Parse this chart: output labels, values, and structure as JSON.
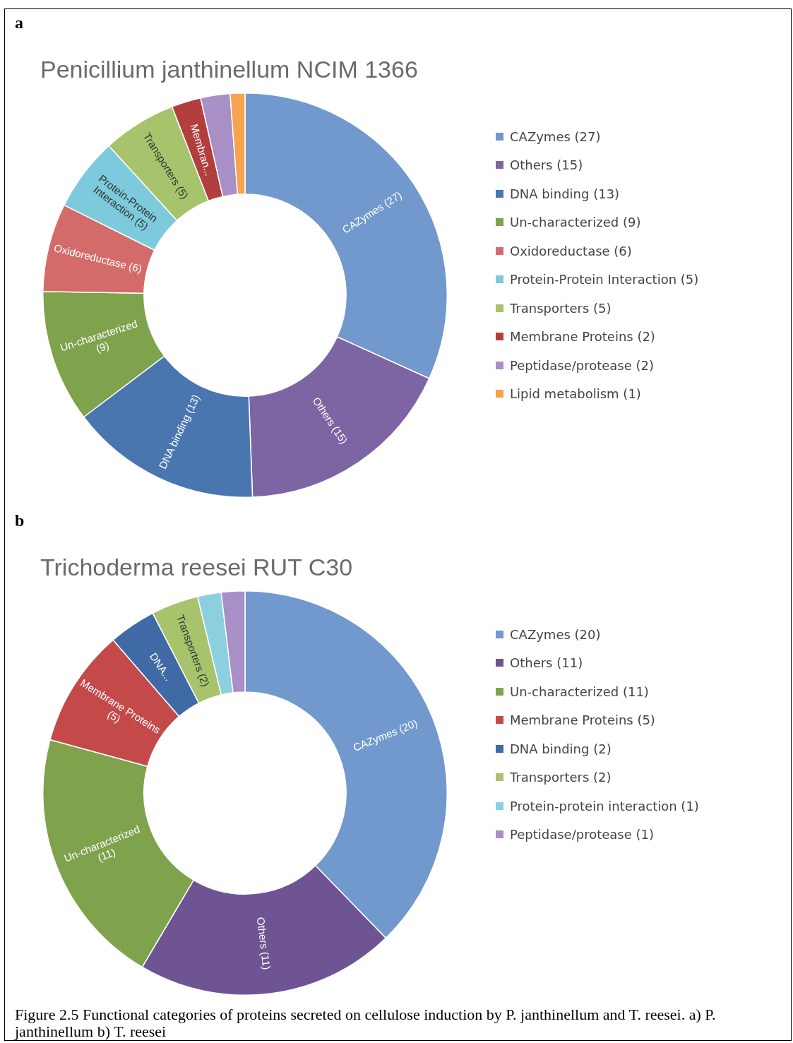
{
  "chart_data": [
    {
      "type": "donut",
      "title": "Penicillium janthinellum NCIM 1366",
      "legend": "right",
      "annotations": [
        "a"
      ],
      "categories": [
        "CAZymes (27)",
        "Others (15)",
        "DNA binding (13)",
        "Un-characterized (9)",
        "Oxidoreductase (6)",
        "Protein-Protein Interaction (5)",
        "Transporters (5)",
        "Membrane Proteins (2)",
        "Peptidase/protease (2)",
        "Lipid metabolism (1)"
      ],
      "values": [
        27,
        15,
        13,
        9,
        6,
        5,
        5,
        2,
        2,
        1
      ],
      "colors": [
        "#7199cd",
        "#7d64a3",
        "#4a76b0",
        "#7fa24c",
        "#d46b6b",
        "#7ccadb",
        "#a7c46c",
        "#b23e3e",
        "#a88fc6",
        "#f7a24f"
      ],
      "value_labels": [
        "CAZymes (27)",
        "Others (15)",
        "DNA binding (13)",
        "Un-characterized (9)",
        "Oxidoreductase (6)",
        "Protein-Protein Interaction (5)",
        "Transporters (5)",
        "Membran...",
        null,
        null
      ]
    },
    {
      "type": "donut",
      "title": "Trichoderma reesei RUT C30",
      "legend": "right",
      "annotations": [
        "b",
        "Figure 2.5 Functional categories of proteins secreted on cellulose induction by P. janthinellum and T. reesei. a) P. janthinellum b) T. reesei"
      ],
      "categories": [
        "CAZymes (20)",
        "Others (11)",
        "Un-characterized (11)",
        "Membrane Proteins (5)",
        "DNA binding (2)",
        "Transporters (2)",
        "Protein-protein interaction (1)",
        "Peptidase/protease (1)"
      ],
      "values": [
        20,
        11,
        11,
        5,
        2,
        2,
        1,
        1
      ],
      "colors": [
        "#7199cd",
        "#6e5493",
        "#7fa24c",
        "#c44a4a",
        "#3f6aa5",
        "#a7c46c",
        "#8ccfdf",
        "#a88fc6"
      ],
      "value_labels": [
        "CAZymes (20)",
        "Others (11)",
        "Un-characterized (11)",
        "Membrane Proteins (5)",
        "DNA...",
        "Transporters (2)",
        null,
        null
      ]
    }
  ]
}
